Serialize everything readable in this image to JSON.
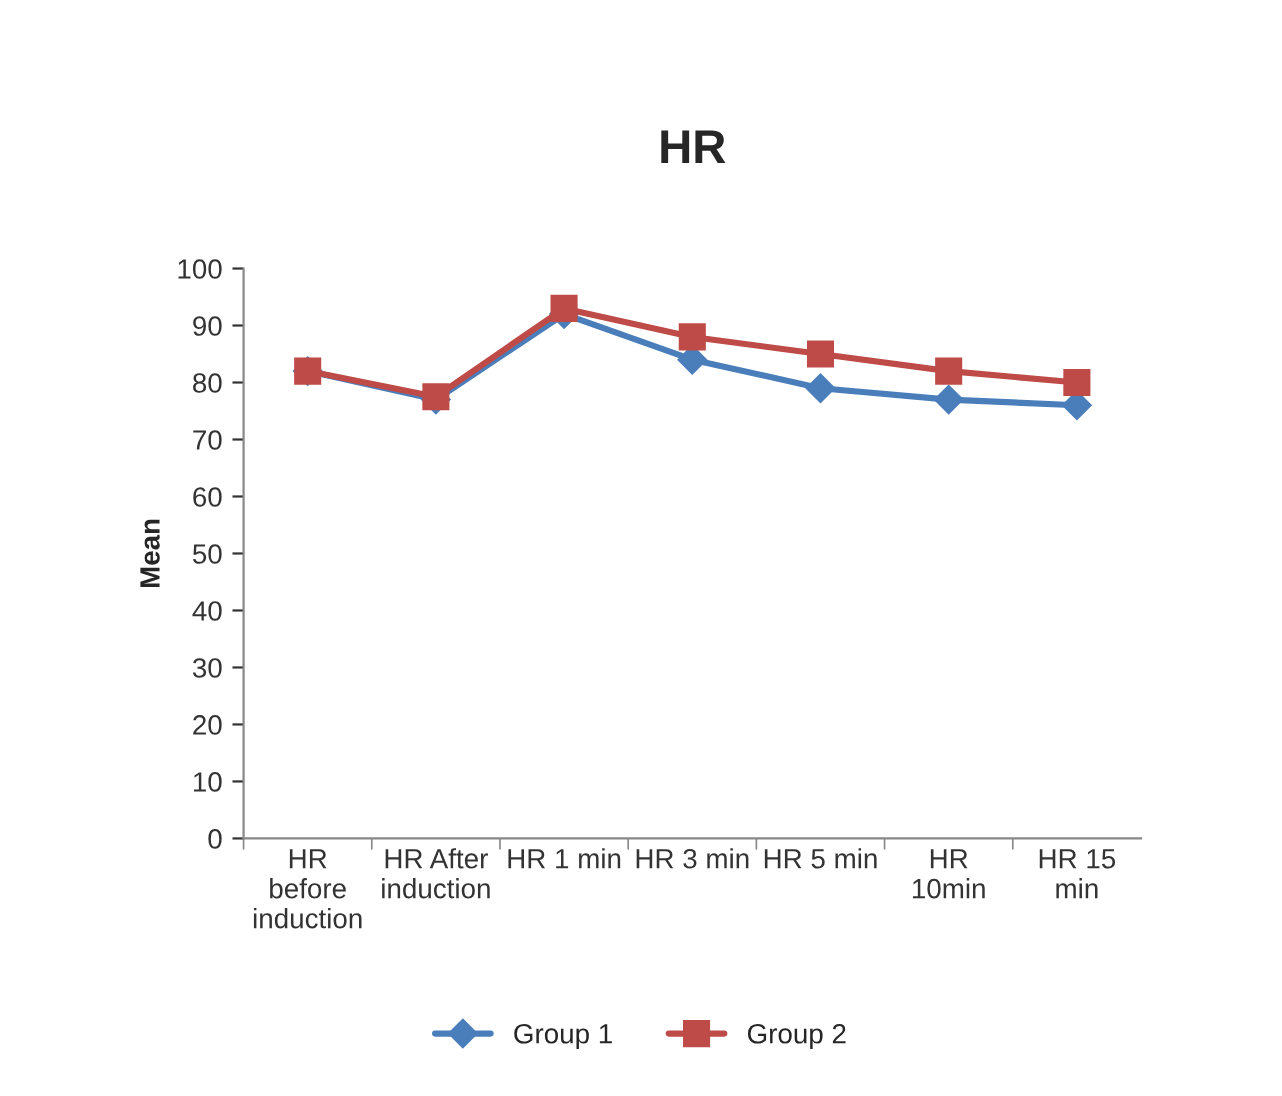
{
  "chart_data": {
    "type": "line",
    "title": "HR",
    "ylabel": "Mean",
    "categories": [
      "HR\nbefore\ninduction",
      "HR After\ninduction",
      "HR 1 min",
      "HR 3 min",
      "HR 5 min",
      "HR\n10min",
      "HR 15\nmin"
    ],
    "series": [
      {
        "name": "Group 1",
        "color": "#4a7ebb",
        "marker": "diamond",
        "values": [
          82,
          77,
          92,
          84,
          79,
          77,
          76
        ]
      },
      {
        "name": "Group 2",
        "color": "#be4b48",
        "marker": "square",
        "values": [
          82,
          77.5,
          93,
          88,
          85,
          82,
          80
        ]
      }
    ],
    "ylim": [
      0,
      100
    ],
    "yticks": [
      0,
      10,
      20,
      30,
      40,
      50,
      60,
      70,
      80,
      90,
      100
    ],
    "grid": false,
    "legend": "bottom",
    "line_style": "solid"
  }
}
